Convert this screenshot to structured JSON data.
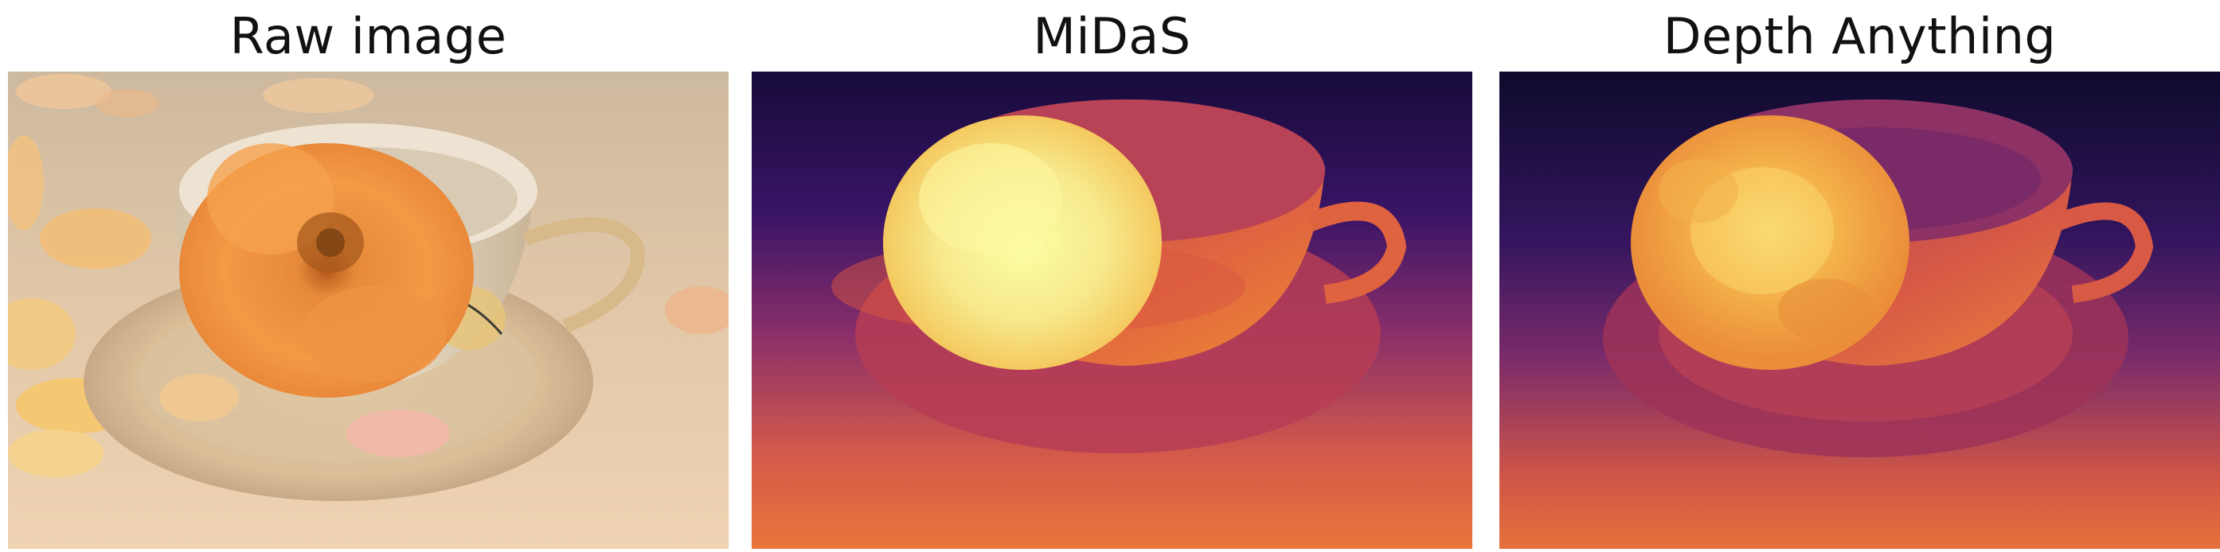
{
  "figure": {
    "panels": [
      {
        "title": "Raw image"
      },
      {
        "title": "MiDaS"
      },
      {
        "title": "Depth Anything"
      }
    ]
  }
}
